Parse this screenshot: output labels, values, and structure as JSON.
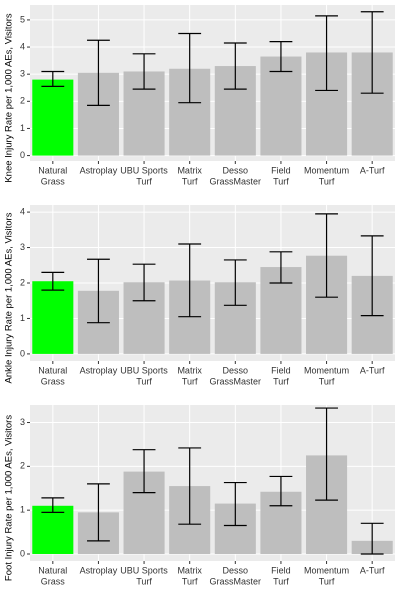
{
  "chart_data": [
    {
      "type": "bar",
      "y_label": "Knee Injury Rate per 1,000 AEs, Visitors",
      "categories": [
        [
          "Natural",
          "Grass"
        ],
        [
          "Astroplay"
        ],
        [
          "UBU Sports",
          "Turf"
        ],
        [
          "Matrix",
          "Turf"
        ],
        [
          "Desso",
          "GrassMaster"
        ],
        [
          "Field",
          "Turf"
        ],
        [
          "Momentum",
          "Turf"
        ],
        [
          "A-Turf"
        ]
      ],
      "values": [
        2.8,
        3.05,
        3.1,
        3.2,
        3.3,
        3.65,
        3.8,
        3.8
      ],
      "lower": [
        2.55,
        1.85,
        2.45,
        1.95,
        2.45,
        3.1,
        2.4,
        2.3
      ],
      "upper": [
        3.1,
        4.25,
        3.75,
        4.5,
        4.15,
        4.2,
        5.15,
        5.3
      ],
      "colors": [
        "#00ff00",
        "#bebebe",
        "#bebebe",
        "#bebebe",
        "#bebebe",
        "#bebebe",
        "#bebebe",
        "#bebebe"
      ],
      "ylim": [
        -0.2,
        5.55
      ],
      "yticks": [
        0,
        1,
        2,
        3,
        4,
        5
      ],
      "grid": true
    },
    {
      "type": "bar",
      "y_label": "Ankle Injury Rate per 1,000 AEs, Visitors",
      "categories": [
        [
          "Natural",
          "Grass"
        ],
        [
          "Astroplay"
        ],
        [
          "UBU Sports",
          "Turf"
        ],
        [
          "Matrix",
          "Turf"
        ],
        [
          "Desso",
          "GrassMaster"
        ],
        [
          "Field",
          "Turf"
        ],
        [
          "Momentum",
          "Turf"
        ],
        [
          "A-Turf"
        ]
      ],
      "values": [
        2.05,
        1.78,
        2.02,
        2.07,
        2.02,
        2.45,
        2.77,
        2.2
      ],
      "lower": [
        1.8,
        0.88,
        1.5,
        1.05,
        1.37,
        2.0,
        1.6,
        1.08
      ],
      "upper": [
        2.3,
        2.67,
        2.53,
        3.1,
        2.65,
        2.88,
        3.95,
        3.33
      ],
      "colors": [
        "#00ff00",
        "#bebebe",
        "#bebebe",
        "#bebebe",
        "#bebebe",
        "#bebebe",
        "#bebebe",
        "#bebebe"
      ],
      "ylim": [
        -0.2,
        4.2
      ],
      "yticks": [
        0,
        1,
        2,
        3,
        4
      ],
      "grid": true
    },
    {
      "type": "bar",
      "y_label": "Foot Injury Rate per 1,000 AEs, Visitors",
      "categories": [
        [
          "Natural",
          "Grass"
        ],
        [
          "Astroplay"
        ],
        [
          "UBU Sports",
          "Turf"
        ],
        [
          "Matrix",
          "Turf"
        ],
        [
          "Desso",
          "GrassMaster"
        ],
        [
          "Field",
          "Turf"
        ],
        [
          "Momentum",
          "Turf"
        ],
        [
          "A-Turf"
        ]
      ],
      "values": [
        1.1,
        0.95,
        1.88,
        1.55,
        1.15,
        1.42,
        2.25,
        0.3
      ],
      "lower": [
        0.95,
        0.3,
        1.4,
        0.68,
        0.65,
        1.1,
        1.23,
        0
      ],
      "upper": [
        1.28,
        1.6,
        2.38,
        2.42,
        1.63,
        1.77,
        3.33,
        0.7
      ],
      "colors": [
        "#00ff00",
        "#bebebe",
        "#bebebe",
        "#bebebe",
        "#bebebe",
        "#bebebe",
        "#bebebe",
        "#bebebe"
      ],
      "ylim": [
        -0.16,
        3.4
      ],
      "yticks": [
        0,
        1,
        2,
        3
      ],
      "grid": true
    }
  ]
}
